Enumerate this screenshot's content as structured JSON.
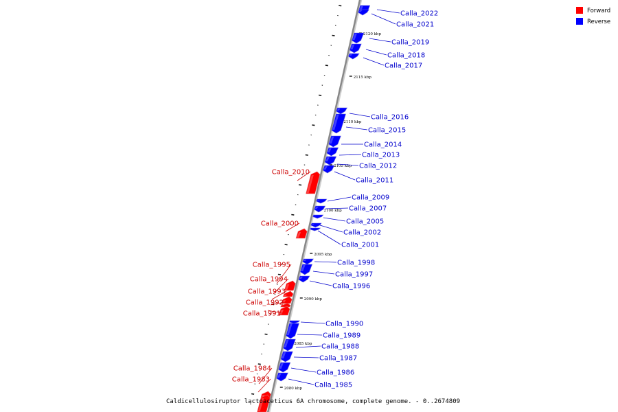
{
  "caption": "Caldicellulosiruptor lactoaceticus 6A chromosome, complete genome. - 0..2674809",
  "legend": [
    {
      "label": "Forward",
      "color": "#ff0000"
    },
    {
      "label": "Reverse",
      "color": "#0000ff"
    }
  ],
  "colors": {
    "forward": "#ff0000",
    "forward_label": "#cc0000",
    "reverse": "#0000ff",
    "reverse_label": "#0000cc",
    "backbone": "#888888"
  },
  "ticks": [
    "2120 kbp",
    "2115 kbp",
    "2110 kbp",
    "2105 kbp",
    "2100 kbp",
    "2095 kbp",
    "2090 kbp",
    "2085 kbp",
    "2080 kbp"
  ],
  "genes": [
    {
      "name": "Calla_2022",
      "strand": "reverse"
    },
    {
      "name": "Calla_2021",
      "strand": "reverse"
    },
    {
      "name": "Calla_2019",
      "strand": "reverse"
    },
    {
      "name": "Calla_2018",
      "strand": "reverse"
    },
    {
      "name": "Calla_2017",
      "strand": "reverse"
    },
    {
      "name": "Calla_2016",
      "strand": "reverse"
    },
    {
      "name": "Calla_2015",
      "strand": "reverse"
    },
    {
      "name": "Calla_2014",
      "strand": "reverse"
    },
    {
      "name": "Calla_2013",
      "strand": "reverse"
    },
    {
      "name": "Calla_2012",
      "strand": "reverse"
    },
    {
      "name": "Calla_2011",
      "strand": "reverse"
    },
    {
      "name": "Calla_2010",
      "strand": "forward"
    },
    {
      "name": "Calla_2009",
      "strand": "reverse"
    },
    {
      "name": "Calla_2007",
      "strand": "reverse"
    },
    {
      "name": "Calla_2005",
      "strand": "reverse"
    },
    {
      "name": "Calla_2002",
      "strand": "reverse"
    },
    {
      "name": "Calla_2001",
      "strand": "reverse"
    },
    {
      "name": "Calla_2000",
      "strand": "forward"
    },
    {
      "name": "Calla_1998",
      "strand": "reverse"
    },
    {
      "name": "Calla_1997",
      "strand": "reverse"
    },
    {
      "name": "Calla_1996",
      "strand": "reverse"
    },
    {
      "name": "Calla_1995",
      "strand": "forward"
    },
    {
      "name": "Calla_1994",
      "strand": "forward"
    },
    {
      "name": "Calla_1993",
      "strand": "forward"
    },
    {
      "name": "Calla_1992",
      "strand": "forward"
    },
    {
      "name": "Calla_1991",
      "strand": "forward"
    },
    {
      "name": "Calla_1990",
      "strand": "reverse"
    },
    {
      "name": "Calla_1989",
      "strand": "reverse"
    },
    {
      "name": "Calla_1988",
      "strand": "reverse"
    },
    {
      "name": "Calla_1987",
      "strand": "reverse"
    },
    {
      "name": "Calla_1986",
      "strand": "reverse"
    },
    {
      "name": "Calla_1985",
      "strand": "reverse"
    },
    {
      "name": "Calla_1984",
      "strand": "forward"
    },
    {
      "name": "Calla_1983",
      "strand": "forward"
    }
  ]
}
